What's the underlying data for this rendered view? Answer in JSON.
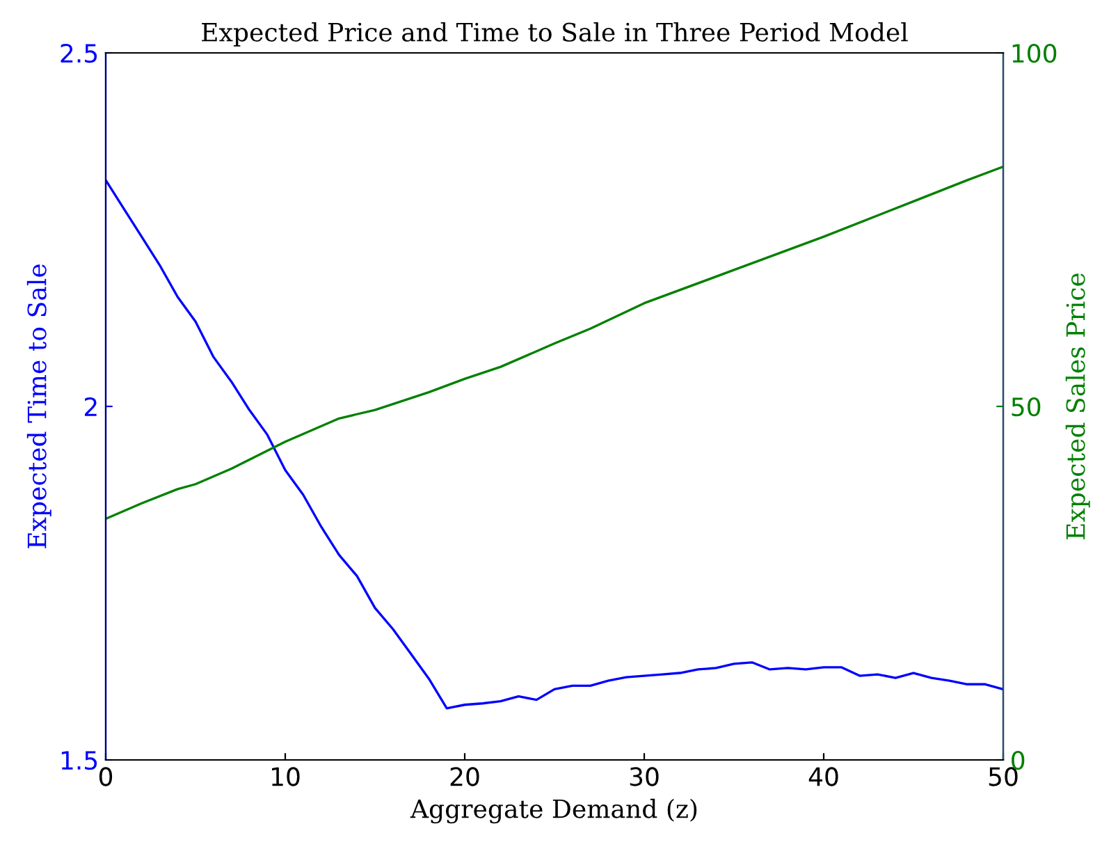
{
  "chart_data": {
    "type": "line",
    "title": "Expected Price and Time to Sale in Three Period Model",
    "xlabel": "Aggregate Demand (z)",
    "ylabel": "Expected Time to Sale",
    "y2label": "Expected Sales Price",
    "xlim": [
      0,
      50
    ],
    "xticks": [
      0,
      10,
      20,
      30,
      40,
      50
    ],
    "ylim": [
      1.5,
      2.5
    ],
    "yticks": [
      1.5,
      2,
      2.5
    ],
    "y2lim": [
      0,
      100
    ],
    "y2ticks": [
      0,
      50,
      100
    ],
    "grid": false,
    "legend": false,
    "marker": "none",
    "line_style": "solid",
    "series": [
      {
        "color": "#0000ff",
        "x": [
          0,
          1,
          2,
          3,
          4,
          5,
          6,
          7,
          8,
          9,
          10,
          11,
          12,
          13,
          14,
          15,
          16,
          17,
          18,
          19,
          20,
          21,
          22,
          23,
          24,
          25,
          26,
          27,
          28,
          29,
          30,
          31,
          32,
          33,
          34,
          35,
          36,
          37,
          38,
          39,
          40,
          41,
          42,
          43,
          44,
          45,
          46,
          47,
          48,
          49,
          50
        ],
        "values": [
          2.32,
          2.28,
          2.24,
          2.2,
          2.155,
          2.12,
          2.07,
          2.035,
          1.995,
          1.96,
          1.91,
          1.875,
          1.83,
          1.79,
          1.76,
          1.715,
          1.685,
          1.65,
          1.615,
          1.573,
          1.578,
          1.58,
          1.583,
          1.59,
          1.585,
          1.6,
          1.605,
          1.605,
          1.612,
          1.617,
          1.619,
          1.621,
          1.623,
          1.628,
          1.63,
          1.636,
          1.638,
          1.628,
          1.63,
          1.628,
          1.631,
          1.631,
          1.619,
          1.621,
          1.616,
          1.623,
          1.616,
          1.612,
          1.607,
          1.607,
          1.6
        ]
      },
      {
        "color": "#008000",
        "axis": "y2",
        "x": [
          0,
          2,
          4,
          5,
          7,
          10,
          13,
          15,
          18,
          20,
          22,
          25,
          27,
          30,
          35,
          40,
          45,
          48,
          50
        ],
        "values": [
          34.1,
          36.3,
          38.3,
          39.0,
          41.2,
          45.0,
          48.3,
          49.5,
          52.0,
          53.9,
          55.6,
          58.9,
          61.0,
          64.6,
          69.3,
          74.0,
          79.0,
          82.0,
          83.9
        ]
      }
    ]
  }
}
